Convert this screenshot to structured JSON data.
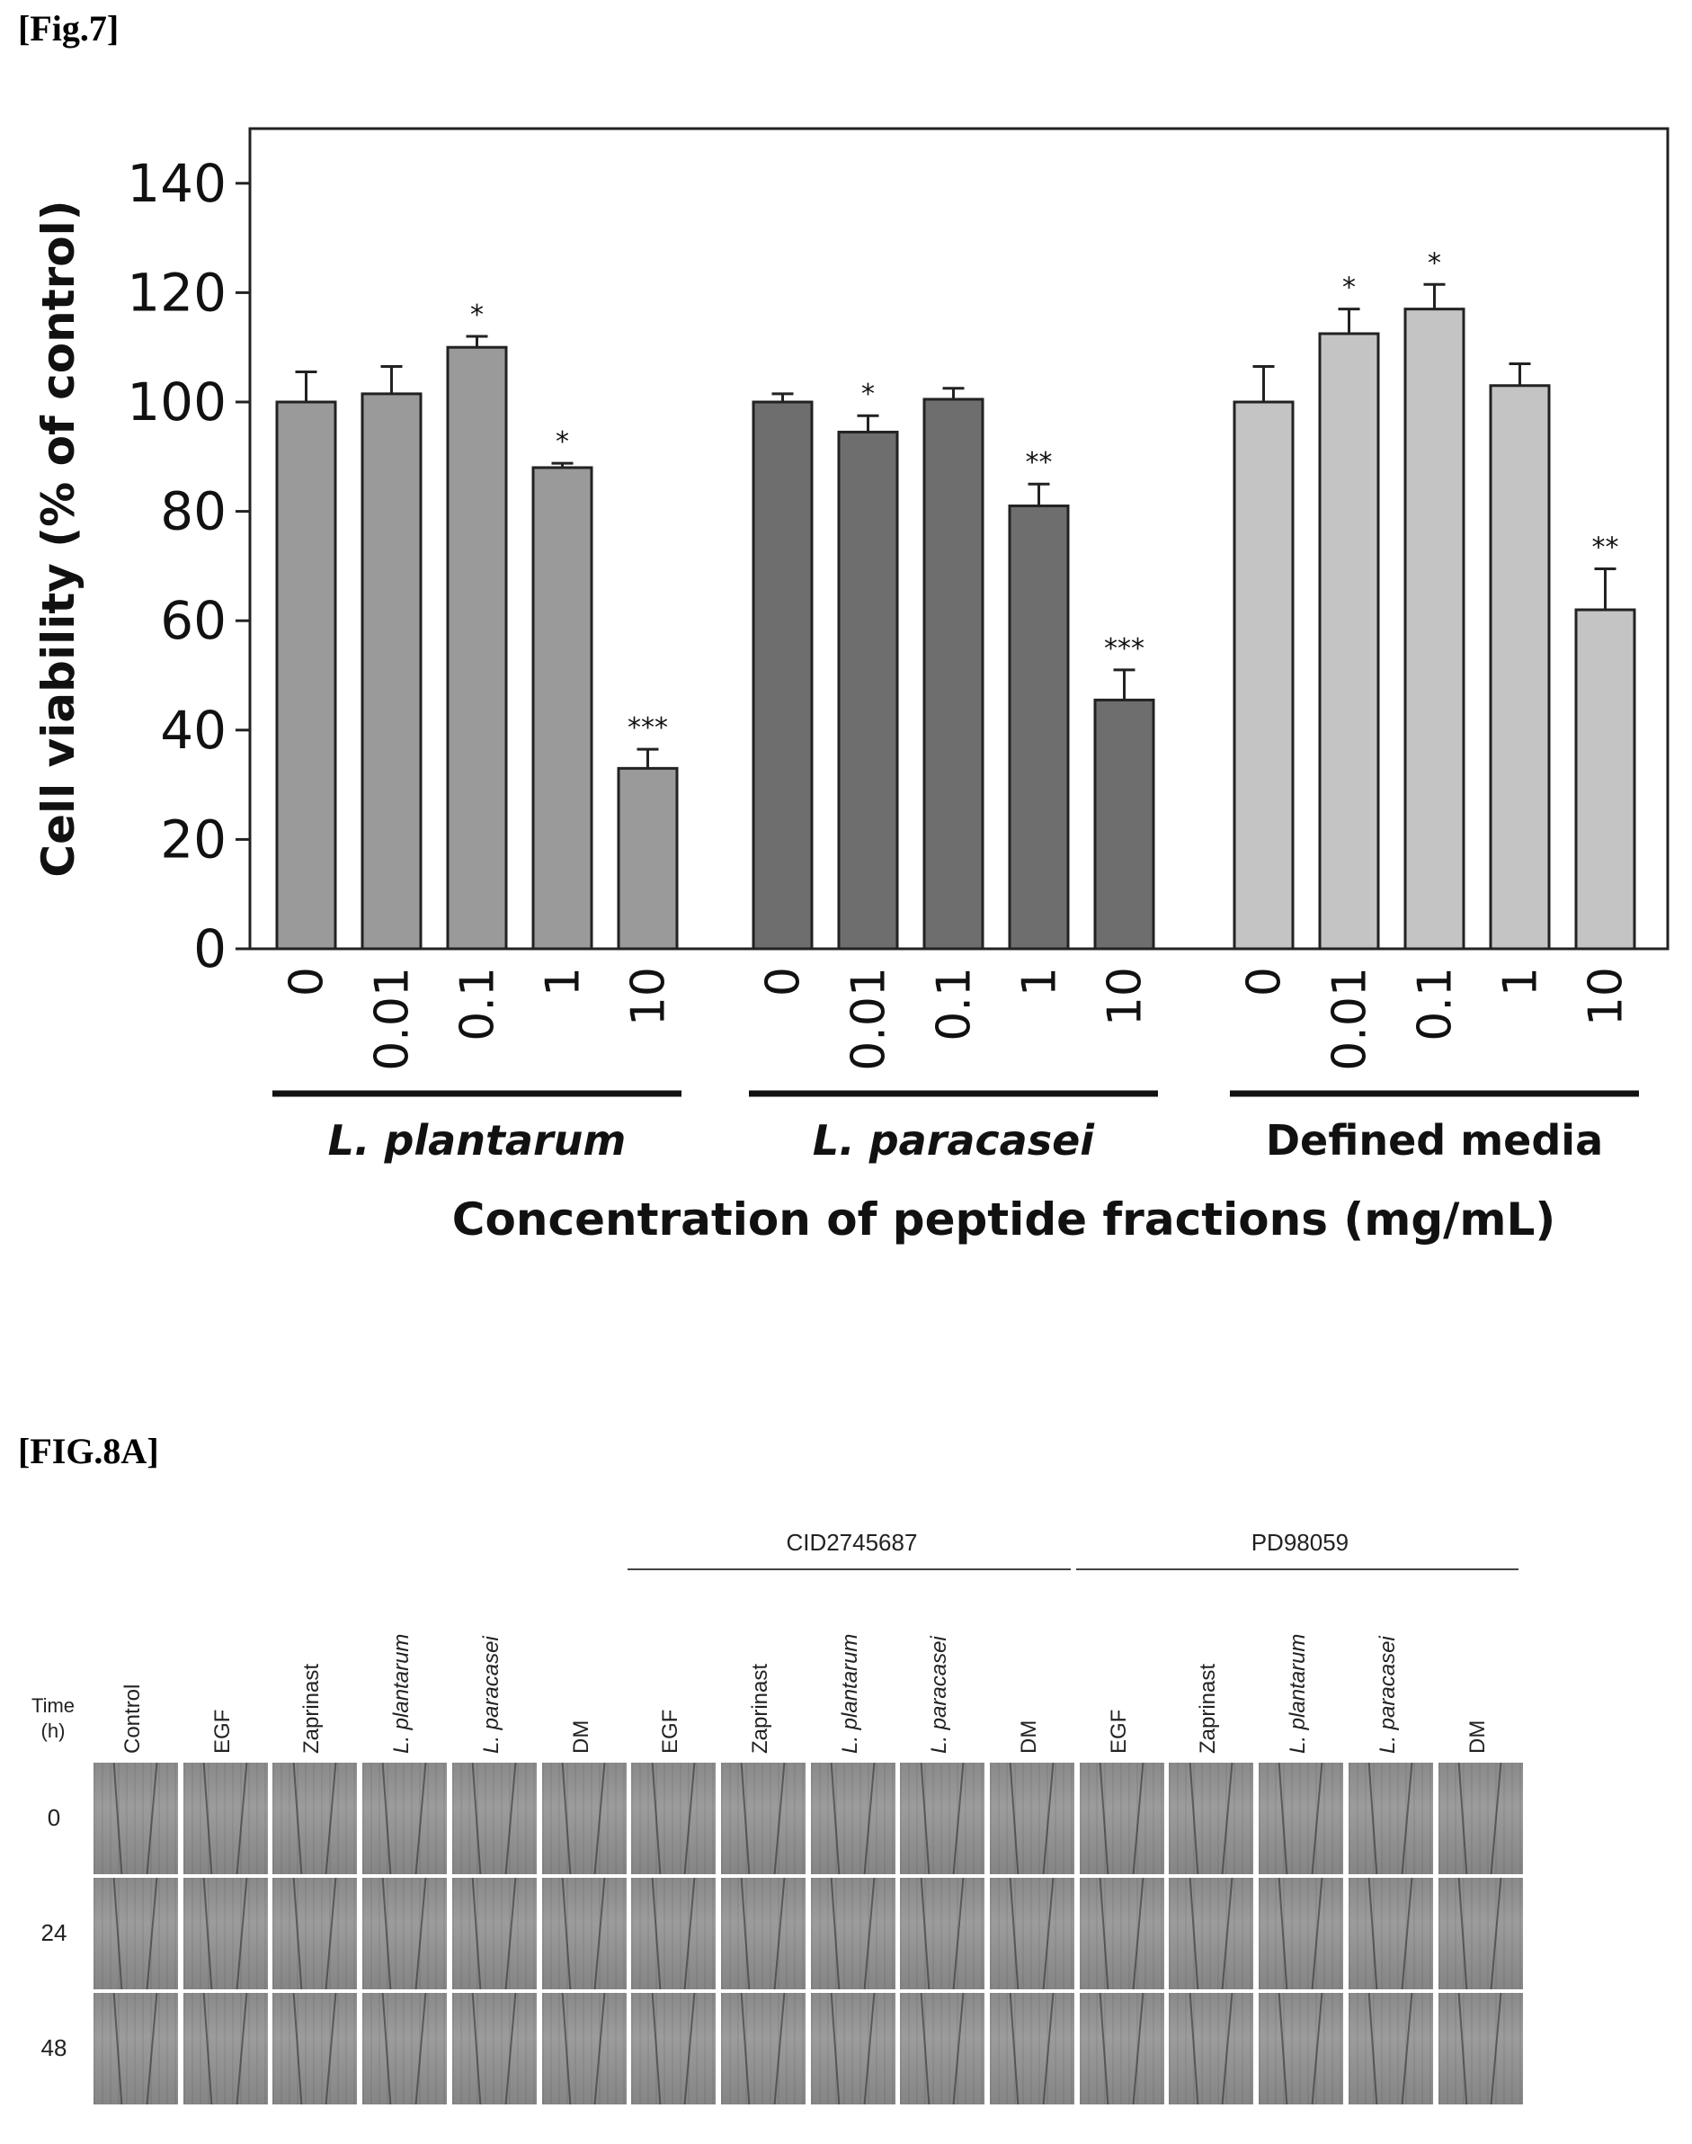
{
  "fig7": {
    "label": "[Fig.7]"
  },
  "fig8a": {
    "label": "[FIG.8A]",
    "time_header": [
      "Time",
      "(h)"
    ],
    "brackets": [
      "CID2745687",
      "PD98059"
    ],
    "columns": [
      "Control",
      "EGF",
      "Zaprinast",
      "L. plantarum",
      "L. paracasei",
      "DM",
      "EGF",
      "Zaprinast",
      "L. plantarum",
      "L. paracasei",
      "DM",
      "EGF",
      "Zaprinast",
      "L. plantarum",
      "L. paracasei",
      "DM"
    ],
    "italic_columns": [
      3,
      4,
      8,
      9,
      13,
      14
    ],
    "rows": [
      "0",
      "24",
      "48"
    ]
  },
  "chart_data": {
    "type": "bar",
    "title": "",
    "ylabel": "Cell viability (% of control)",
    "xlabel": "Concentration of peptide fractions (mg/mL)",
    "ylim": [
      0,
      150
    ],
    "yticks": [
      0,
      20,
      40,
      60,
      80,
      100,
      120,
      140
    ],
    "grid": false,
    "groups": [
      {
        "name": "L. plantarum",
        "color": "#9a9a9a",
        "categories": [
          "0",
          "0.01",
          "0.1",
          "1",
          "10"
        ],
        "values": [
          100,
          101.5,
          110,
          88,
          33
        ],
        "errors": [
          5.5,
          5,
          2,
          0.8,
          3.5
        ],
        "significance": [
          "",
          "",
          "*",
          "*",
          "***"
        ]
      },
      {
        "name": "L. paracasei",
        "color": "#6e6e6e",
        "categories": [
          "0",
          "0.01",
          "0.1",
          "1",
          "10"
        ],
        "values": [
          100,
          94.5,
          100.5,
          81,
          45.5
        ],
        "errors": [
          1.5,
          3,
          2,
          4,
          5.5
        ],
        "significance": [
          "",
          "*",
          "",
          "**",
          "***"
        ]
      },
      {
        "name": "Defined media",
        "color": "#c4c4c4",
        "categories": [
          "0",
          "0.01",
          "0.1",
          "1",
          "10"
        ],
        "values": [
          100,
          112.5,
          117,
          103,
          62
        ],
        "errors": [
          6.5,
          4.5,
          4.5,
          4,
          7.5
        ],
        "significance": [
          "",
          "*",
          "*",
          "",
          "**"
        ]
      }
    ]
  }
}
